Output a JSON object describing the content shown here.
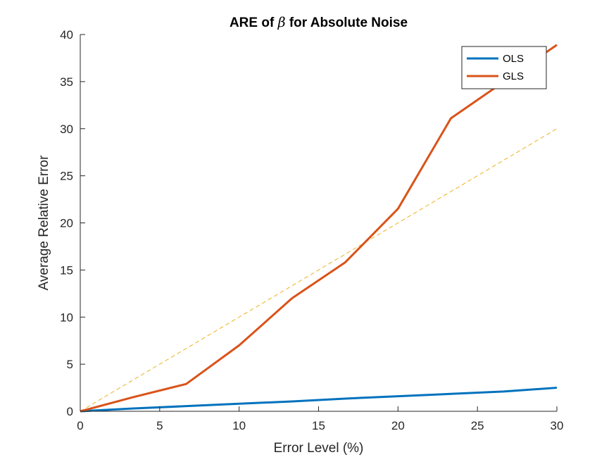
{
  "chart_data": {
    "type": "line",
    "title": "ARE of β for Absolute Noise",
    "title_parts": {
      "before": "ARE of ",
      "symbol": "β",
      "after": " for Absolute Noise"
    },
    "xlabel": "Error Level (%)",
    "ylabel": "Average Relative Error",
    "xlim": [
      0,
      30
    ],
    "ylim": [
      0,
      40
    ],
    "xticks": [
      0,
      5,
      10,
      15,
      20,
      25,
      30
    ],
    "yticks": [
      0,
      5,
      10,
      15,
      20,
      25,
      30,
      35,
      40
    ],
    "grid": false,
    "legend_position": "top-right",
    "series": [
      {
        "name": "OLS",
        "color": "#0072BD",
        "style": "solid",
        "x": [
          0,
          3.33,
          6.67,
          10,
          13.33,
          16.67,
          20,
          23.33,
          26.67,
          30
        ],
        "y": [
          0,
          0.3,
          0.55,
          0.8,
          1.05,
          1.35,
          1.6,
          1.85,
          2.1,
          2.5
        ]
      },
      {
        "name": "GLS",
        "color": "#D95319",
        "style": "solid",
        "x": [
          0,
          3.33,
          6.67,
          10,
          13.33,
          16.67,
          20,
          23.33,
          26.67,
          30
        ],
        "y": [
          0,
          1.5,
          2.9,
          7.0,
          12.0,
          15.8,
          21.5,
          31.1,
          35.0,
          38.9
        ]
      },
      {
        "color": "#EDB120",
        "style": "dashed",
        "x": [
          0,
          30
        ],
        "y": [
          0,
          30
        ]
      }
    ]
  }
}
